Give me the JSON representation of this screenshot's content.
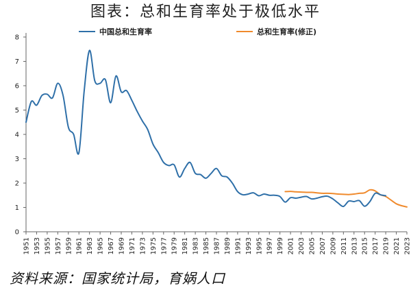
{
  "title": "图表：总和生育率处于极低水平",
  "source": "资料来源：国家统计局，育娲人口",
  "colors": {
    "series1": "#2e6fa8",
    "series2": "#f08a2c",
    "axis": "#666666"
  },
  "chart_data": {
    "type": "line",
    "title": "图表：总和生育率处于极低水平",
    "xlabel": "",
    "ylabel": "",
    "xlim": [
      1951,
      2023
    ],
    "ylim": [
      0,
      8
    ],
    "yticks": [
      0,
      1,
      2,
      3,
      4,
      5,
      6,
      7,
      8
    ],
    "xticks": [
      1951,
      1953,
      1955,
      1957,
      1959,
      1961,
      1963,
      1965,
      1967,
      1969,
      1971,
      1973,
      1975,
      1977,
      1979,
      1981,
      1983,
      1985,
      1987,
      1989,
      1991,
      1993,
      1995,
      1997,
      1999,
      2001,
      2003,
      2005,
      2007,
      2009,
      2011,
      2013,
      2015,
      2017,
      2019,
      2021,
      2023
    ],
    "legend_position": "top",
    "grid": false,
    "series": [
      {
        "name": "中国总和生育率",
        "color": "#2e6fa8",
        "x": [
          1951,
          1952,
          1953,
          1954,
          1955,
          1956,
          1957,
          1958,
          1959,
          1960,
          1961,
          1962,
          1963,
          1964,
          1965,
          1966,
          1967,
          1968,
          1969,
          1970,
          1971,
          1972,
          1973,
          1974,
          1975,
          1976,
          1977,
          1978,
          1979,
          1980,
          1981,
          1982,
          1983,
          1984,
          1985,
          1986,
          1987,
          1988,
          1989,
          1990,
          1991,
          1992,
          1993,
          1994,
          1995,
          1996,
          1997,
          1998,
          1999,
          2000,
          2001,
          2002,
          2003,
          2004,
          2005,
          2006,
          2007,
          2008,
          2009,
          2010,
          2011,
          2012,
          2013,
          2014,
          2015,
          2016,
          2017,
          2018,
          2019
        ],
        "y": [
          4.5,
          5.35,
          5.2,
          5.6,
          5.65,
          5.5,
          6.1,
          5.6,
          4.3,
          4.0,
          3.25,
          5.8,
          7.45,
          6.2,
          6.1,
          6.25,
          5.3,
          6.4,
          5.75,
          5.8,
          5.4,
          4.95,
          4.55,
          4.2,
          3.6,
          3.25,
          2.85,
          2.72,
          2.75,
          2.25,
          2.6,
          2.85,
          2.4,
          2.35,
          2.2,
          2.4,
          2.6,
          2.3,
          2.25,
          2.0,
          1.65,
          1.52,
          1.55,
          1.6,
          1.48,
          1.55,
          1.5,
          1.5,
          1.45,
          1.22,
          1.4,
          1.38,
          1.42,
          1.45,
          1.35,
          1.38,
          1.44,
          1.46,
          1.35,
          1.18,
          1.04,
          1.26,
          1.24,
          1.28,
          1.05,
          1.24,
          1.58,
          1.52,
          1.48
        ]
      },
      {
        "name": "总和生育率(修正)",
        "color": "#f08a2c",
        "x": [
          2000,
          2001,
          2002,
          2003,
          2004,
          2005,
          2006,
          2007,
          2008,
          2009,
          2010,
          2011,
          2012,
          2013,
          2014,
          2015,
          2016,
          2017,
          2018,
          2019,
          2020,
          2021,
          2022,
          2023
        ],
        "y": [
          1.65,
          1.66,
          1.64,
          1.63,
          1.62,
          1.62,
          1.6,
          1.58,
          1.58,
          1.57,
          1.55,
          1.54,
          1.53,
          1.55,
          1.58,
          1.6,
          1.72,
          1.68,
          1.52,
          1.45,
          1.3,
          1.15,
          1.07,
          1.02
        ]
      }
    ]
  }
}
